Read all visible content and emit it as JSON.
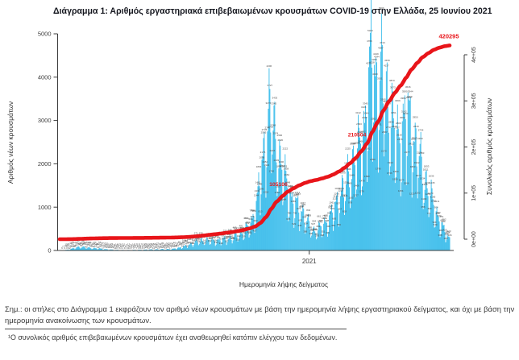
{
  "title": "Διάγραμμα 1: Αριθμός εργαστηριακά επιβεβαιωμένων κρουσμάτων COVID-19 στην Ελλάδα, 25 Ιουνίου 2021",
  "notes": {
    "main": "Σημ.: οι στήλες στο Διάγραμμα 1 εκφράζουν τον αριθμό νέων κρουσμάτων με βάση την ημερομηνία λήψης εργαστηριακού δείγματος, και όχι με βάση την ημερομηνία ανακοίνωσης των κρουσμάτων.",
    "footnote": "¹Ο συνολικός αριθμός επιβεβαιωμένων κρουσμάτων έχει αναθεωρηθεί κατόπιν ελέγχου των δεδομένων."
  },
  "chart_data": {
    "type": "bar+line",
    "title": "Διάγραμμα 1: Αριθμός εργαστηριακά επιβεβαιωμένων κρουσμάτων COVID-19 στην Ελλάδα, 25 Ιουνίου 2021",
    "xlabel": "Ημερομηνία λήψης δείγματος",
    "x_tick_labels": [
      "2021"
    ],
    "y_left": {
      "label": "Αριθμός νέων κρουσμάτων",
      "tick_labels": [
        "0",
        "1000",
        "2000",
        "3000",
        "4000",
        "5000"
      ],
      "tick_values": [
        0,
        1000,
        2000,
        3000,
        4000,
        5000
      ],
      "range": [
        0,
        5000
      ]
    },
    "y_right": {
      "label": "Συνολικός αριθμός κρουσμάτων",
      "tick_labels": [
        "0e+00",
        "1e+05",
        "2e+05",
        "3e+05",
        "4e+05"
      ],
      "tick_values": [
        0,
        100000,
        200000,
        300000,
        400000
      ],
      "range": [
        0,
        400000
      ]
    },
    "colors": {
      "bar": "#2db8ea",
      "line": "#e8151a",
      "annotation": "#e8151a",
      "axis": "#3c3c3c",
      "bar_label": "#4a4a4a"
    },
    "legend": "none",
    "grid": false,
    "series": [
      {
        "name": "daily_new_cases_by_sampling_date",
        "type": "bar",
        "note": "daily values estimated from pixel heights; anchor points [date, value]",
        "points": [
          [
            "2020-02-26",
            3
          ],
          [
            "2020-03-05",
            15
          ],
          [
            "2020-03-15",
            60
          ],
          [
            "2020-03-22",
            95
          ],
          [
            "2020-04-01",
            65
          ],
          [
            "2020-04-10",
            55
          ],
          [
            "2020-04-20",
            35
          ],
          [
            "2020-05-01",
            18
          ],
          [
            "2020-05-15",
            10
          ],
          [
            "2020-06-01",
            14
          ],
          [
            "2020-06-15",
            22
          ],
          [
            "2020-07-01",
            28
          ],
          [
            "2020-07-15",
            35
          ],
          [
            "2020-08-01",
            110
          ],
          [
            "2020-08-12",
            210
          ],
          [
            "2020-08-25",
            260
          ],
          [
            "2020-09-05",
            240
          ],
          [
            "2020-09-15",
            270
          ],
          [
            "2020-09-25",
            310
          ],
          [
            "2020-10-05",
            400
          ],
          [
            "2020-10-12",
            480
          ],
          [
            "2020-10-20",
            640
          ],
          [
            "2020-10-27",
            1100
          ],
          [
            "2020-11-02",
            1900
          ],
          [
            "2020-11-07",
            2650
          ],
          [
            "2020-11-12",
            3415
          ],
          [
            "2020-11-15",
            3332
          ],
          [
            "2020-11-19",
            2800
          ],
          [
            "2020-11-24",
            2300
          ],
          [
            "2020-11-30",
            1900
          ],
          [
            "2020-12-06",
            1500
          ],
          [
            "2020-12-12",
            1200
          ],
          [
            "2020-12-18",
            1050
          ],
          [
            "2020-12-24",
            950
          ],
          [
            "2020-12-31",
            650
          ],
          [
            "2021-01-06",
            480
          ],
          [
            "2021-01-12",
            520
          ],
          [
            "2021-01-19",
            620
          ],
          [
            "2021-01-26",
            800
          ],
          [
            "2021-02-02",
            1050
          ],
          [
            "2021-02-09",
            1400
          ],
          [
            "2021-02-16",
            1650
          ],
          [
            "2021-02-23",
            2050
          ],
          [
            "2021-03-02",
            2400
          ],
          [
            "2021-03-09",
            2800
          ],
          [
            "2021-03-16",
            3900
          ],
          [
            "2021-03-19",
            4852
          ],
          [
            "2021-03-23",
            4400
          ],
          [
            "2021-03-27",
            3900
          ],
          [
            "2021-03-31",
            4336
          ],
          [
            "2021-04-04",
            4100
          ],
          [
            "2021-04-08",
            3700
          ],
          [
            "2021-04-13",
            3300
          ],
          [
            "2021-04-18",
            2900
          ],
          [
            "2021-04-23",
            2700
          ],
          [
            "2021-04-28",
            3100
          ],
          [
            "2021-05-04",
            3346
          ],
          [
            "2021-05-08",
            3000
          ],
          [
            "2021-05-13",
            2600
          ],
          [
            "2021-05-18",
            2300
          ],
          [
            "2021-05-24",
            1800
          ],
          [
            "2021-05-31",
            1400
          ],
          [
            "2021-06-07",
            1000
          ],
          [
            "2021-06-14",
            650
          ],
          [
            "2021-06-20",
            420
          ],
          [
            "2021-06-25",
            280
          ]
        ]
      },
      {
        "name": "cumulative_confirmed_cases",
        "type": "line",
        "final_value": 420295,
        "annotations": [
          {
            "label": "105106",
            "at_value": 105106
          },
          {
            "label": "210504",
            "at_value": 210504
          },
          {
            "label": "420295",
            "at_value": 420295,
            "at_end": true
          }
        ]
      }
    ],
    "x_range": [
      "2020-02-25",
      "2021-06-25"
    ]
  }
}
